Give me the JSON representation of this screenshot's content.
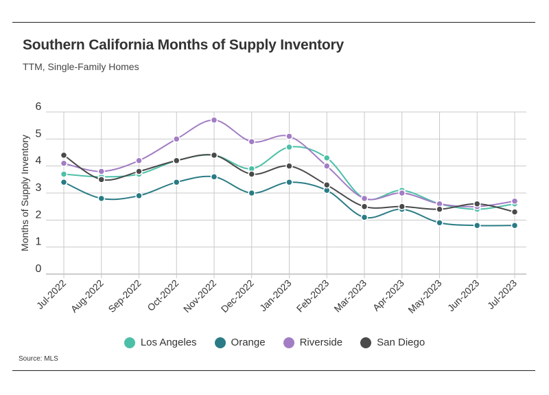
{
  "header": {
    "title": "Southern California Months of Supply Inventory",
    "subtitle": "TTM, Single-Family Homes"
  },
  "footer": {
    "source": "Source: MLS"
  },
  "chart_data": {
    "type": "line",
    "title": "Southern California Months of Supply Inventory",
    "subtitle": "TTM, Single-Family Homes",
    "xlabel": "",
    "ylabel": "Months of Supply Inventory",
    "ylim": [
      0,
      6
    ],
    "yticks": [
      0,
      1,
      2,
      3,
      4,
      5,
      6
    ],
    "grid": true,
    "legend_position": "bottom",
    "smooth": true,
    "categories": [
      "Jul-2022",
      "Aug-2022",
      "Sep-2022",
      "Oct-2022",
      "Nov-2022",
      "Dec-2022",
      "Jan-2023",
      "Feb-2023",
      "Mar-2023",
      "Apr-2023",
      "May-2023",
      "Jun-2023",
      "Jul-2023"
    ],
    "series": [
      {
        "name": "Los Angeles",
        "color": "#4dbfa8",
        "values": [
          3.7,
          3.6,
          3.7,
          4.2,
          4.4,
          3.9,
          4.7,
          4.3,
          2.8,
          3.1,
          2.6,
          2.4,
          2.6
        ]
      },
      {
        "name": "Orange",
        "color": "#2a7b85",
        "values": [
          3.4,
          2.8,
          2.9,
          3.4,
          3.6,
          3.0,
          3.4,
          3.1,
          2.1,
          2.4,
          1.9,
          1.8,
          1.8
        ]
      },
      {
        "name": "Riverside",
        "color": "#a27dc4",
        "values": [
          4.1,
          3.8,
          4.2,
          5.0,
          5.7,
          4.9,
          5.1,
          4.0,
          2.8,
          3.0,
          2.6,
          2.5,
          2.7
        ]
      },
      {
        "name": "San Diego",
        "color": "#4a4a4a",
        "values": [
          4.4,
          3.5,
          3.8,
          4.2,
          4.4,
          3.7,
          4.0,
          3.3,
          2.5,
          2.5,
          2.4,
          2.6,
          2.3
        ]
      }
    ]
  }
}
